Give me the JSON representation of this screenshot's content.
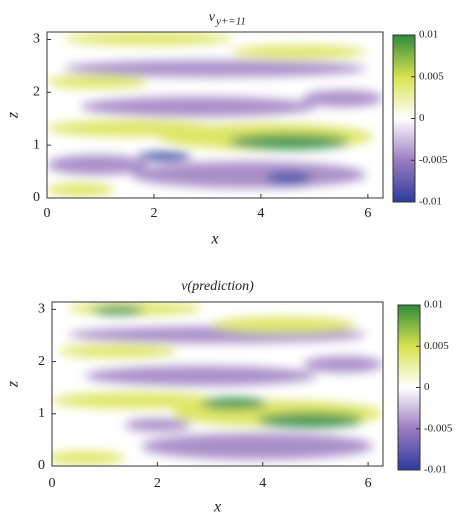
{
  "chart_data": [
    {
      "type": "heatmap",
      "title": "v",
      "title_subscript": "y+=11",
      "xlabel": "x",
      "ylabel": "z",
      "xlim": [
        0,
        6.283
      ],
      "xticks": [
        0,
        2,
        4,
        6
      ],
      "ylim": [
        0,
        3.1416
      ],
      "yticks": [
        0,
        1,
        2,
        3
      ],
      "clim": [
        -0.01,
        0.01
      ],
      "cticks": [
        0.01,
        0.005,
        0,
        -0.005,
        -0.01
      ],
      "colormap": [
        "#2d3c9e",
        "#9a7cc0",
        "#ffffff",
        "#d8e24e",
        "#2f8a3c"
      ]
    },
    {
      "type": "heatmap",
      "title": "v(prediction)",
      "xlabel": "x",
      "ylabel": "z",
      "xlim": [
        0,
        6.283
      ],
      "xticks": [
        0,
        2,
        4,
        6
      ],
      "ylim": [
        0,
        3.1416
      ],
      "yticks": [
        0,
        1,
        2,
        3
      ],
      "clim": [
        -0.01,
        0.01
      ],
      "cticks": [
        0.01,
        0.005,
        0,
        -0.005,
        -0.01
      ],
      "colormap": [
        "#2d3c9e",
        "#9a7cc0",
        "#ffffff",
        "#d8e24e",
        "#2f8a3c"
      ]
    }
  ]
}
